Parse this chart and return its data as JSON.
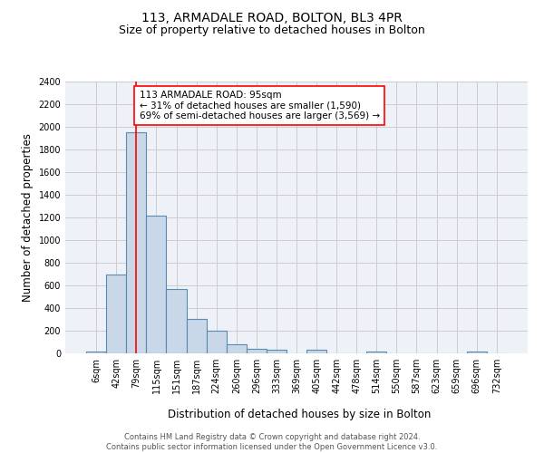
{
  "title": "113, ARMADALE ROAD, BOLTON, BL3 4PR",
  "subtitle": "Size of property relative to detached houses in Bolton",
  "xlabel": "Distribution of detached houses by size in Bolton",
  "ylabel": "Number of detached properties",
  "bin_labels": [
    "6sqm",
    "42sqm",
    "79sqm",
    "115sqm",
    "151sqm",
    "187sqm",
    "224sqm",
    "260sqm",
    "296sqm",
    "333sqm",
    "369sqm",
    "405sqm",
    "442sqm",
    "478sqm",
    "514sqm",
    "550sqm",
    "587sqm",
    "623sqm",
    "659sqm",
    "696sqm",
    "732sqm"
  ],
  "bar_heights": [
    20,
    700,
    1950,
    1220,
    570,
    305,
    200,
    80,
    40,
    35,
    0,
    35,
    0,
    0,
    20,
    0,
    0,
    0,
    0,
    20,
    0
  ],
  "bar_color": "#c8d8e8",
  "bar_edge_color": "#5a8ab0",
  "bar_edge_width": 0.8,
  "grid_color": "#cccccc",
  "background_color": "#eef2f8",
  "property_line_x": 2,
  "property_line_color": "red",
  "annotation_text": "113 ARMADALE ROAD: 95sqm\n← 31% of detached houses are smaller (1,590)\n69% of semi-detached houses are larger (3,569) →",
  "annotation_box_color": "white",
  "annotation_box_edge_color": "red",
  "ylim": [
    0,
    2400
  ],
  "yticks": [
    0,
    200,
    400,
    600,
    800,
    1000,
    1200,
    1400,
    1600,
    1800,
    2000,
    2200,
    2400
  ],
  "footer_text": "Contains HM Land Registry data © Crown copyright and database right 2024.\nContains public sector information licensed under the Open Government Licence v3.0.",
  "title_fontsize": 10,
  "subtitle_fontsize": 9,
  "xlabel_fontsize": 8.5,
  "ylabel_fontsize": 8.5,
  "tick_fontsize": 7,
  "annotation_fontsize": 7.5,
  "footer_fontsize": 6
}
